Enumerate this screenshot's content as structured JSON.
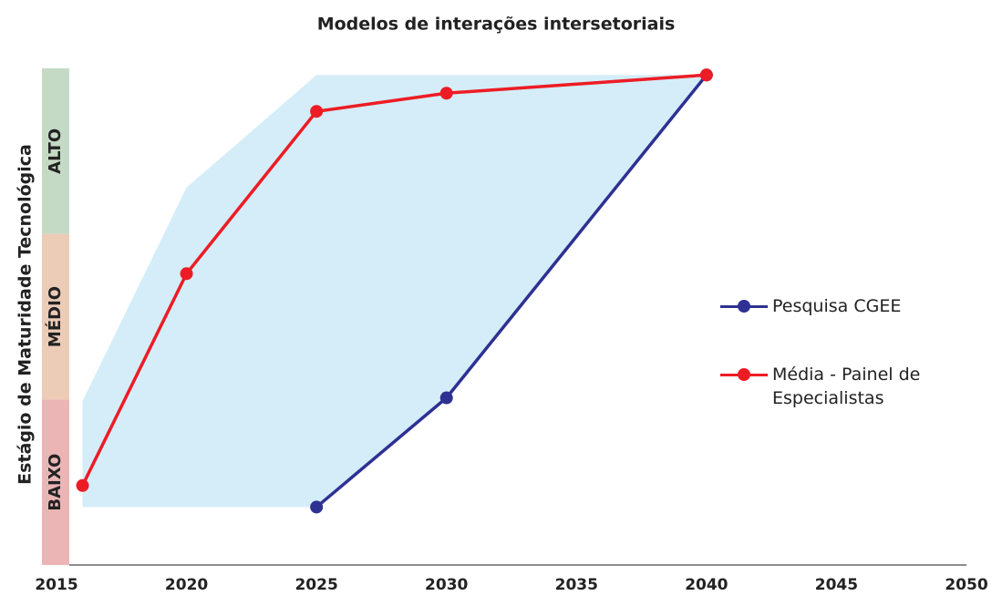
{
  "chart_data": {
    "type": "line",
    "title": "Modelos de interações intersetoriais",
    "ylabel": "Estágio de Maturidade Tecnológica",
    "xlim": [
      2015,
      2050
    ],
    "xticks": [
      2015,
      2020,
      2025,
      2030,
      2035,
      2040,
      2045,
      2050
    ],
    "ylim": [
      0,
      3
    ],
    "bands": [
      {
        "label": "BAIXO",
        "range": [
          0,
          1
        ],
        "color": "#ebb5b5"
      },
      {
        "label": "MÉDIO",
        "range": [
          1,
          2
        ],
        "color": "#eccbb7"
      },
      {
        "label": "ALTO",
        "range": [
          2,
          3
        ],
        "color": "#c5dac5"
      }
    ],
    "area": {
      "color": "#d4edf9",
      "x": [
        2016,
        2020,
        2025,
        2040,
        2030,
        2025,
        2016
      ],
      "values": [
        0.99,
        2.28,
        2.96,
        2.96,
        1.01,
        0.35,
        0.35
      ]
    },
    "series": [
      {
        "name": "Pesquisa CGEE",
        "color": "#2e3192",
        "x": [
          2025,
          2030,
          2040
        ],
        "values": [
          0.35,
          1.01,
          2.96
        ]
      },
      {
        "name": "Média - Painel de Especialistas",
        "color": "#ed1c24",
        "x": [
          2016,
          2020,
          2025,
          2030,
          2040
        ],
        "values": [
          0.48,
          1.76,
          2.74,
          2.85,
          2.96
        ]
      }
    ]
  }
}
